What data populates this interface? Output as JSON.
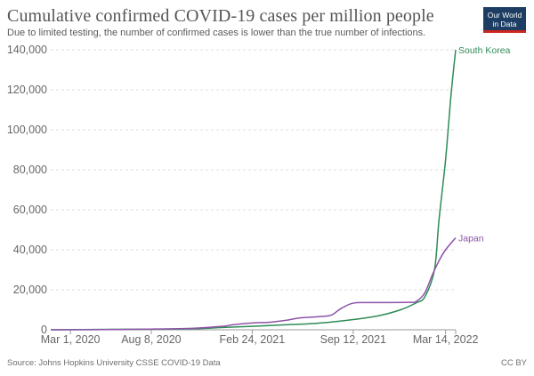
{
  "header": {
    "title": "Cumulative confirmed COVID-19 cases per million people",
    "subtitle": "Due to limited testing, the number of confirmed cases is lower than the true number of infections."
  },
  "logo": {
    "line1": "Our World",
    "line2": "in Data"
  },
  "footer": {
    "source": "Source: Johns Hopkins University CSSE COVID-19 Data",
    "license": "CC BY"
  },
  "chart_data": {
    "type": "line",
    "title": "Cumulative confirmed COVID-19 cases per million people",
    "subtitle": "Due to limited testing, the number of confirmed cases is lower than the true number of infections.",
    "xlabel": "",
    "ylabel": "",
    "x_ticks": [
      "Mar 1, 2020",
      "Aug 8, 2020",
      "Feb 24, 2021",
      "Sep 12, 2021",
      "Mar 14, 2022"
    ],
    "x_range": [
      "2020-01-22",
      "2022-04-03"
    ],
    "y_ticks": [
      0,
      20000,
      40000,
      60000,
      80000,
      100000,
      120000,
      140000
    ],
    "y_tick_labels": [
      "0",
      "20,000",
      "40,000",
      "60,000",
      "80,000",
      "100,000",
      "120,000",
      "140,000"
    ],
    "ylim": [
      0,
      140000
    ],
    "grid": "horizontal-dashed",
    "legend": "inline-labels",
    "series": [
      {
        "name": "South Korea",
        "color": "#2e8b57",
        "points": [
          [
            "2020-01-22",
            0
          ],
          [
            "2020-03-01",
            70
          ],
          [
            "2020-06-01",
            230
          ],
          [
            "2020-08-08",
            290
          ],
          [
            "2020-11-01",
            530
          ],
          [
            "2021-01-01",
            1200
          ],
          [
            "2021-02-24",
            1720
          ],
          [
            "2021-05-01",
            2500
          ],
          [
            "2021-07-01",
            3200
          ],
          [
            "2021-09-12",
            5100
          ],
          [
            "2021-11-01",
            7000
          ],
          [
            "2021-12-15",
            10000
          ],
          [
            "2022-01-15",
            13500
          ],
          [
            "2022-02-01",
            16500
          ],
          [
            "2022-02-20",
            30000
          ],
          [
            "2022-03-01",
            55000
          ],
          [
            "2022-03-14",
            85000
          ],
          [
            "2022-03-25",
            118000
          ],
          [
            "2022-04-03",
            140000
          ]
        ]
      },
      {
        "name": "Japan",
        "color": "#8e52a8",
        "points": [
          [
            "2020-01-22",
            0
          ],
          [
            "2020-03-01",
            20
          ],
          [
            "2020-06-01",
            150
          ],
          [
            "2020-08-08",
            350
          ],
          [
            "2020-11-01",
            800
          ],
          [
            "2020-12-15",
            1500
          ],
          [
            "2021-01-01",
            1850
          ],
          [
            "2021-01-20",
            2600
          ],
          [
            "2021-02-24",
            3400
          ],
          [
            "2021-04-01",
            3800
          ],
          [
            "2021-05-01",
            4700
          ],
          [
            "2021-06-01",
            6000
          ],
          [
            "2021-07-15",
            6700
          ],
          [
            "2021-08-01",
            7500
          ],
          [
            "2021-08-20",
            10800
          ],
          [
            "2021-09-12",
            13300
          ],
          [
            "2021-10-15",
            13600
          ],
          [
            "2021-12-31",
            13700
          ],
          [
            "2022-01-15",
            14200
          ],
          [
            "2022-02-01",
            18500
          ],
          [
            "2022-02-15",
            27000
          ],
          [
            "2022-03-01",
            34500
          ],
          [
            "2022-03-14",
            40000
          ],
          [
            "2022-04-03",
            46000
          ]
        ]
      }
    ]
  }
}
